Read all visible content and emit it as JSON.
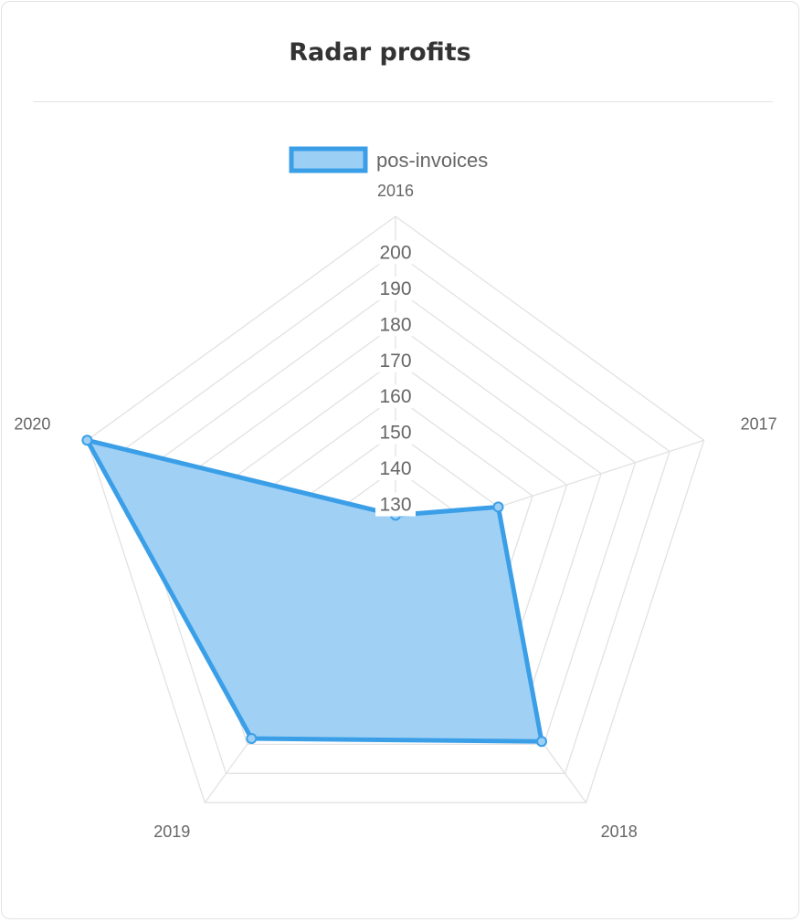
{
  "card": {
    "title": "Radar profits"
  },
  "chart_data": {
    "type": "radar",
    "title": "Radar profits",
    "categories": [
      "2016",
      "2017",
      "2018",
      "2019",
      "2020"
    ],
    "series": [
      {
        "name": "pos-invoices",
        "values": [
          127,
          150,
          189,
          188,
          210
        ]
      }
    ],
    "r_ticks": [
      130,
      140,
      150,
      160,
      170,
      180,
      190,
      200
    ],
    "r_range": [
      120,
      210
    ],
    "legend": "top",
    "grid": true,
    "colors": {
      "line": "#3b9fe8",
      "fill": "#9bcff4",
      "grid": "#e2e2e2"
    }
  }
}
